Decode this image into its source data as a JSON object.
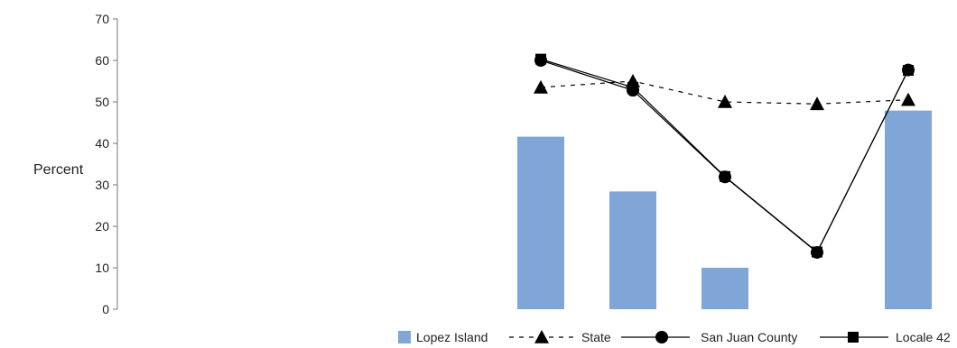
{
  "chart_data": {
    "type": "bar",
    "title": "",
    "ylabel": "Percent",
    "xlabel": "",
    "ylim": [
      0,
      70
    ],
    "yticks": [
      0,
      10,
      20,
      30,
      40,
      50,
      60,
      70
    ],
    "grid": false,
    "legend_position": "bottom",
    "categories": [
      "",
      "",
      "",
      "",
      ""
    ],
    "series": [
      {
        "name": "Lopez Island",
        "kind": "bar",
        "color": "#7fa6d6",
        "values": [
          41.6,
          28.4,
          10.0,
          null,
          47.9
        ]
      },
      {
        "name": "State",
        "kind": "line",
        "line_style": "dashed",
        "marker": "triangle",
        "color": "#000000",
        "values": [
          53.5,
          55.0,
          50.0,
          49.5,
          50.5
        ]
      },
      {
        "name": "San Juan County",
        "kind": "line",
        "line_style": "solid",
        "marker": "circle",
        "color": "#000000",
        "values": [
          60.0,
          52.8,
          31.9,
          13.7,
          57.7
        ]
      },
      {
        "name": "Locale 42",
        "kind": "line",
        "line_style": "solid",
        "marker": "square",
        "color": "#000000",
        "values": [
          60.3,
          53.5,
          32.0,
          13.8,
          57.6
        ]
      }
    ]
  }
}
